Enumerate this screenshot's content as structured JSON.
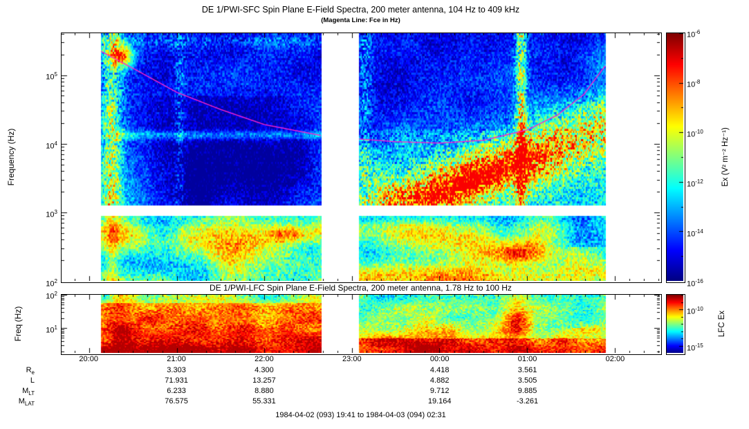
{
  "footer": "1984-04-02 (093) 19:41 to 1984-04-03 (094) 02:31",
  "chart_data": [
    {
      "type": "heatmap",
      "name": "DE 1 PWI SFC spectrogram",
      "title": "DE 1/PWI-SFC  Spin Plane E-Field Spectra, 200 meter antenna, 104 Hz to 409 kHz",
      "subtitle": "(Magenta Line: Fce in Hz)",
      "xlabel": "",
      "ylabel": "Frequency (Hz)",
      "ylog_range": [
        2,
        5.612
      ],
      "ytick_exponents": [
        2,
        3,
        4,
        5
      ],
      "x_start_hour": 19.6833,
      "x_end_hour": 26.5167,
      "xtick_hours": [
        20,
        21,
        22,
        23,
        24,
        25,
        26
      ],
      "xtick_labels": [
        "20:00",
        "21:00",
        "22:00",
        "23:00",
        "00:00",
        "01:00",
        "02:00"
      ],
      "data_segments_hours": [
        [
          20.13,
          22.65
        ],
        [
          23.08,
          25.9
        ]
      ],
      "white_band_log": [
        2.95,
        3.1
      ],
      "grid": false,
      "legend": "none",
      "fce_line": {
        "label": "Fce in Hz",
        "color": "#ff22cc",
        "points_hour_loghz": [
          [
            20.13,
            5.35
          ],
          [
            20.5,
            5.1
          ],
          [
            21.0,
            4.75
          ],
          [
            21.5,
            4.5
          ],
          [
            22.0,
            4.28
          ],
          [
            22.65,
            4.12
          ],
          [
            23.08,
            4.07
          ],
          [
            23.5,
            4.03
          ],
          [
            24.0,
            4.01
          ],
          [
            24.5,
            4.05
          ],
          [
            25.0,
            4.2
          ],
          [
            25.35,
            4.42
          ],
          [
            25.65,
            4.72
          ],
          [
            25.9,
            5.15
          ]
        ]
      },
      "features": [
        "Broadband bursts near 20:10-20:30 at all frequencies",
        "Low-intensity (dark blue) region 20:30-22:30 between ~1-30 kHz",
        "Narrowband line near 13 kHz from 20:20 to 22:30",
        "Rising emission band from ~1 kHz at 23:00 to ~10 kHz at 01:30",
        "Intense burst column near 00:55",
        "Data gap 22:39-23:05; data spans 20:08 to 01:54"
      ],
      "colorbar": {
        "label": "Ex (V² m⁻² Hz⁻¹)",
        "range_exponents": [
          -6,
          -16
        ],
        "tick_exponents": [
          -6,
          -8,
          -10,
          -12,
          -14,
          -16
        ]
      }
    },
    {
      "type": "heatmap",
      "name": "DE 1 PWI LFC spectrogram",
      "title": "DE 1/PWI-LFC  Spin Plane E-Field Spectra, 200 meter antenna, 1.78 Hz to 100 Hz",
      "xlabel": "",
      "ylabel": "Freq (Hz)",
      "ylog_range": [
        0.25,
        2
      ],
      "ytick_exponents": [
        1,
        2
      ],
      "x_start_hour": 19.6833,
      "x_end_hour": 26.5167,
      "data_segments_hours": [
        [
          20.13,
          22.65
        ],
        [
          23.08,
          25.9
        ]
      ],
      "grid": false,
      "legend": "none",
      "features": [
        "Intense broadband emission (red/orange) 20:08-22:30 below ~30 Hz",
        "Persistent enhanced emission along lowest frequencies",
        "Orange burst near 00:50"
      ],
      "colorbar": {
        "label": "LFC Ex",
        "range_exponents": [
          -8,
          -16
        ],
        "tick_exponents": [
          -10,
          -15
        ]
      }
    }
  ],
  "ephemeris": {
    "row_labels": [
      {
        "base": "R",
        "sub": "e"
      },
      {
        "base": "L",
        "sub": ""
      },
      {
        "base": "M",
        "sub": "LT"
      },
      {
        "base": "M",
        "sub": "LAT"
      }
    ],
    "columns_hours": [
      21,
      22,
      24,
      25
    ],
    "rows": [
      [
        "3.303",
        "4.300",
        "4.418",
        "3.561"
      ],
      [
        "71.931",
        "13.257",
        "4.882",
        "3.505"
      ],
      [
        "6.233",
        "8.880",
        "9.712",
        "9.885"
      ],
      [
        "76.575",
        "55.331",
        "19.164",
        "-3.261"
      ]
    ]
  }
}
